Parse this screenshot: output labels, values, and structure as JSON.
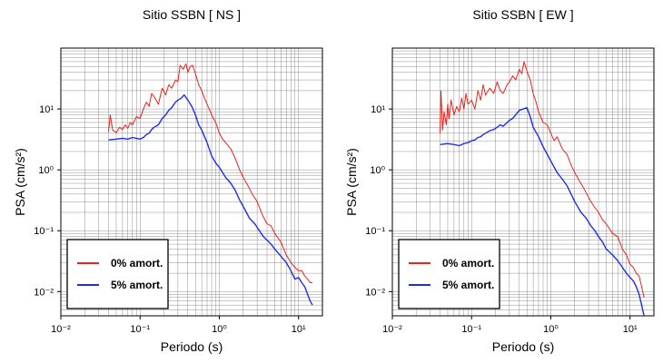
{
  "chart_data": [
    {
      "type": "line",
      "title": "Sitio SSBN [ NS ]",
      "xlabel": "Periodo (s)",
      "ylabel": "PSA (cm/s²)",
      "xscale": "log",
      "yscale": "log",
      "xlim": [
        0.01,
        20
      ],
      "ylim": [
        0.004,
        100
      ],
      "grid": true,
      "legend_position": "bottom-left",
      "xticks": [
        "10⁻²",
        "10⁻¹",
        "10⁰",
        "10¹"
      ],
      "yticks": [
        "10⁻²",
        "10⁻¹",
        "10⁰",
        "10¹"
      ],
      "series": [
        {
          "name": "0% amort.",
          "color": "#e8231e",
          "x": [
            0.04,
            0.042,
            0.045,
            0.05,
            0.055,
            0.06,
            0.065,
            0.07,
            0.075,
            0.08,
            0.09,
            0.1,
            0.11,
            0.12,
            0.13,
            0.14,
            0.15,
            0.17,
            0.19,
            0.21,
            0.23,
            0.25,
            0.28,
            0.3,
            0.32,
            0.35,
            0.38,
            0.4,
            0.43,
            0.46,
            0.5,
            0.55,
            0.6,
            0.65,
            0.7,
            0.8,
            0.9,
            1.0,
            1.1,
            1.2,
            1.4,
            1.6,
            1.8,
            2.0,
            2.3,
            2.6,
            3.0,
            3.5,
            4.0,
            4.5,
            5.0,
            6.0,
            7.0,
            8.0,
            9.0,
            10.0,
            11.0,
            12.0,
            13.0,
            14.0,
            15.0
          ],
          "y": [
            4.2,
            8.0,
            4.5,
            4.1,
            5.0,
            4.6,
            5.5,
            4.8,
            6.0,
            5.5,
            7.5,
            7.0,
            10.0,
            13.0,
            11.0,
            18.0,
            16.0,
            12.0,
            22.0,
            17.0,
            25.0,
            22.0,
            30.0,
            28.0,
            52.0,
            45.0,
            55.0,
            40.0,
            50.0,
            52.0,
            38.0,
            25.0,
            20.0,
            15.0,
            12.0,
            8.0,
            6.0,
            4.0,
            3.2,
            2.8,
            2.2,
            1.5,
            1.0,
            0.75,
            0.55,
            0.4,
            0.3,
            0.18,
            0.13,
            0.12,
            0.09,
            0.065,
            0.04,
            0.03,
            0.025,
            0.022,
            0.022,
            0.018,
            0.016,
            0.014,
            0.014
          ]
        },
        {
          "name": "5% amort.",
          "color": "#1f2ee6",
          "x": [
            0.04,
            0.05,
            0.06,
            0.07,
            0.08,
            0.09,
            0.1,
            0.11,
            0.12,
            0.13,
            0.14,
            0.15,
            0.17,
            0.19,
            0.21,
            0.23,
            0.25,
            0.28,
            0.3,
            0.33,
            0.36,
            0.4,
            0.45,
            0.5,
            0.55,
            0.6,
            0.7,
            0.8,
            0.9,
            1.0,
            1.2,
            1.4,
            1.6,
            1.8,
            2.0,
            2.4,
            2.8,
            3.2,
            3.6,
            4.0,
            4.5,
            5.0,
            6.0,
            7.0,
            8.0,
            9.0,
            10.0,
            11.0,
            12.0,
            13.0,
            14.0,
            15.0
          ],
          "y": [
            3.1,
            3.2,
            3.3,
            3.2,
            3.4,
            3.3,
            3.2,
            3.4,
            3.8,
            4.0,
            4.6,
            5.0,
            5.5,
            7.0,
            8.0,
            9.5,
            10.5,
            13.0,
            14.0,
            15.0,
            17.0,
            14.0,
            11.0,
            8.0,
            5.5,
            4.5,
            2.8,
            1.7,
            1.3,
            1.1,
            0.75,
            0.6,
            0.45,
            0.32,
            0.25,
            0.16,
            0.13,
            0.1,
            0.08,
            0.07,
            0.06,
            0.05,
            0.038,
            0.03,
            0.022,
            0.016,
            0.017,
            0.014,
            0.012,
            0.009,
            0.007,
            0.006
          ]
        }
      ]
    },
    {
      "type": "line",
      "title": "Sitio SSBN [ EW ]",
      "xlabel": "Periodo (s)",
      "ylabel": "PSA (cm/s²)",
      "xscale": "log",
      "yscale": "log",
      "xlim": [
        0.01,
        20
      ],
      "ylim": [
        0.004,
        100
      ],
      "grid": true,
      "legend_position": "bottom-left",
      "xticks": [
        "10⁻²",
        "10⁻¹",
        "10⁰",
        "10¹"
      ],
      "yticks": [
        "10⁻²",
        "10⁻¹",
        "10⁰",
        "10¹"
      ],
      "series": [
        {
          "name": "0% amort.",
          "color": "#e8231e",
          "x": [
            0.04,
            0.041,
            0.043,
            0.045,
            0.048,
            0.05,
            0.052,
            0.055,
            0.06,
            0.065,
            0.07,
            0.075,
            0.08,
            0.085,
            0.09,
            0.1,
            0.11,
            0.12,
            0.13,
            0.14,
            0.15,
            0.17,
            0.19,
            0.21,
            0.23,
            0.25,
            0.28,
            0.3,
            0.33,
            0.36,
            0.4,
            0.43,
            0.46,
            0.5,
            0.55,
            0.6,
            0.65,
            0.7,
            0.8,
            0.9,
            1.0,
            1.1,
            1.2,
            1.4,
            1.6,
            1.8,
            2.0,
            2.3,
            2.6,
            3.0,
            3.5,
            4.0,
            4.5,
            5.0,
            6.0,
            7.0,
            8.0,
            9.0,
            10.0,
            11.0,
            12.0,
            13.0,
            14.0,
            15.0
          ],
          "y": [
            4.0,
            20.0,
            4.5,
            9.0,
            5.5,
            12.0,
            7.0,
            14.0,
            8.0,
            11.0,
            9.0,
            15.0,
            10.0,
            18.0,
            12.0,
            14.0,
            10.0,
            20.0,
            14.0,
            25.0,
            17.0,
            22.0,
            18.0,
            28.0,
            20.0,
            18.0,
            25.0,
            28.0,
            35.0,
            30.0,
            45.0,
            38.0,
            60.0,
            42.0,
            30.0,
            18.0,
            13.0,
            9.0,
            6.0,
            5.5,
            4.0,
            3.0,
            3.5,
            2.2,
            1.8,
            1.2,
            0.9,
            0.65,
            0.5,
            0.35,
            0.25,
            0.2,
            0.15,
            0.13,
            0.09,
            0.08,
            0.05,
            0.04,
            0.028,
            0.025,
            0.02,
            0.018,
            0.012,
            0.008
          ]
        },
        {
          "name": "5% amort.",
          "color": "#1f2ee6",
          "x": [
            0.04,
            0.05,
            0.06,
            0.07,
            0.08,
            0.09,
            0.1,
            0.11,
            0.12,
            0.13,
            0.14,
            0.15,
            0.17,
            0.19,
            0.21,
            0.23,
            0.25,
            0.28,
            0.3,
            0.33,
            0.36,
            0.4,
            0.45,
            0.5,
            0.55,
            0.6,
            0.7,
            0.8,
            0.9,
            1.0,
            1.2,
            1.4,
            1.6,
            1.8,
            2.0,
            2.4,
            2.8,
            3.2,
            3.6,
            4.0,
            4.5,
            5.0,
            6.0,
            7.0,
            8.0,
            9.0,
            10.0,
            11.0,
            12.0,
            13.0,
            14.0,
            15.0
          ],
          "y": [
            2.6,
            2.7,
            2.6,
            2.5,
            2.7,
            2.8,
            3.0,
            3.1,
            3.4,
            3.5,
            3.8,
            4.0,
            4.4,
            4.6,
            5.0,
            5.5,
            5.2,
            6.0,
            6.5,
            7.0,
            8.0,
            9.5,
            10.0,
            10.5,
            7.5,
            5.0,
            3.5,
            2.4,
            1.8,
            1.4,
            0.9,
            0.7,
            0.55,
            0.4,
            0.3,
            0.2,
            0.16,
            0.12,
            0.1,
            0.08,
            0.065,
            0.05,
            0.04,
            0.032,
            0.025,
            0.02,
            0.017,
            0.015,
            0.012,
            0.009,
            0.006,
            0.004
          ]
        }
      ]
    }
  ]
}
